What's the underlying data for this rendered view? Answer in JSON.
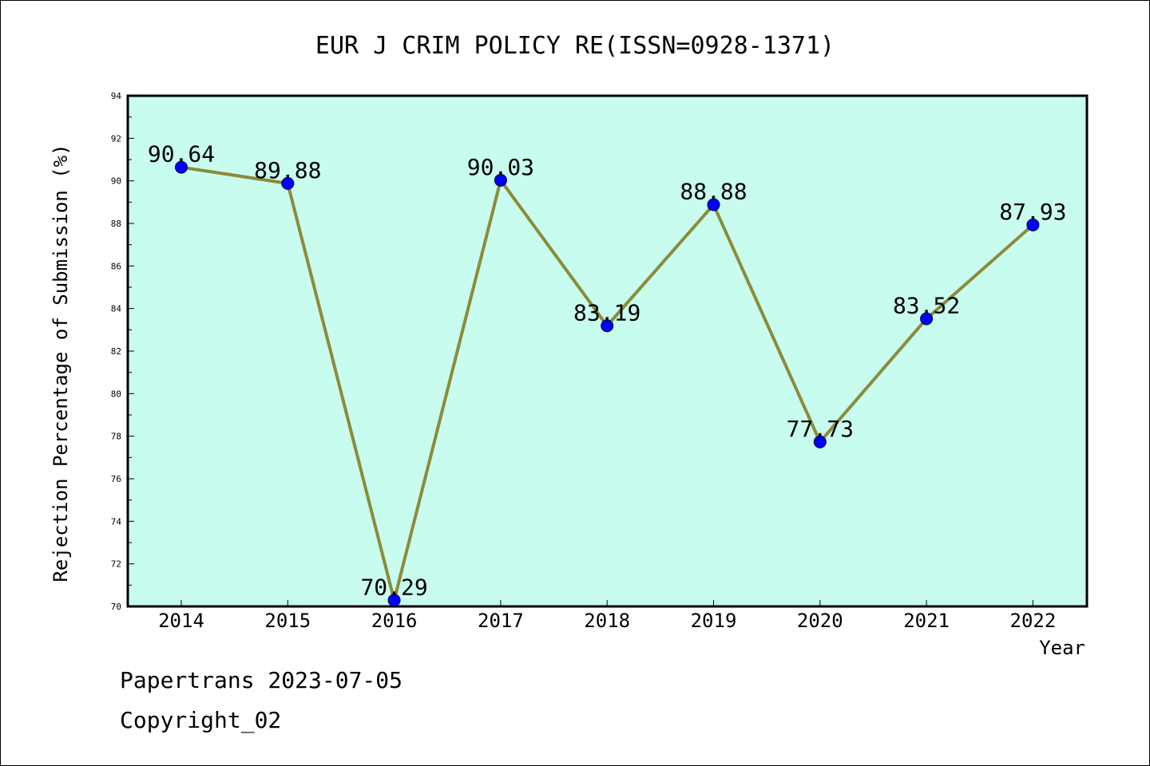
{
  "chart_data": {
    "type": "line",
    "title": "EUR J CRIM POLICY RE(ISSN=0928-1371)",
    "xlabel": "Year",
    "ylabel": "Rejection Percentage of Submission (%)",
    "categories": [
      "2014",
      "2015",
      "2016",
      "2017",
      "2018",
      "2019",
      "2020",
      "2021",
      "2022"
    ],
    "series": [
      {
        "values": [
          90.64,
          89.88,
          70.29,
          90.03,
          83.19,
          88.88,
          77.73,
          83.52,
          87.93
        ]
      }
    ],
    "data_labels": [
      "90.64",
      "89.88",
      "70.29",
      "90.03",
      "83.19",
      "88.88",
      "77.73",
      "83.52",
      "87.93"
    ],
    "ylim": [
      70,
      94
    ],
    "yticks": [
      "70",
      "72",
      "74",
      "76",
      "78",
      "80",
      "82",
      "84",
      "86",
      "88",
      "90",
      "92",
      "94"
    ],
    "grid": false,
    "legend": "none",
    "colors": {
      "plot_background": "#c8fcee",
      "line": "#8b8b3a",
      "marker": "#0000ff"
    }
  },
  "footer": {
    "source": "Papertrans 2023-07-05",
    "copyright": "Copyright_02"
  }
}
